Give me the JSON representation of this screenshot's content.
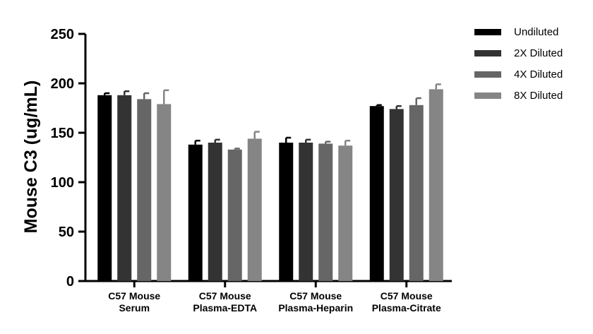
{
  "chart_data": {
    "type": "bar",
    "title": "",
    "xlabel": "",
    "ylabel": "Mouse C3 (ug/mL)",
    "ylim": [
      0,
      250
    ],
    "yticks": [
      0,
      50,
      100,
      150,
      200,
      250
    ],
    "categories": [
      [
        "C57 Mouse",
        "Serum"
      ],
      [
        "C57 Mouse",
        "Plasma-EDTA"
      ],
      [
        "C57 Mouse",
        "Plasma-Heparin"
      ],
      [
        "C57 Mouse",
        "Plasma-Citrate"
      ]
    ],
    "series": [
      {
        "name": "Undiluted",
        "color": "#000000",
        "values": [
          188,
          138,
          140,
          177
        ],
        "errors": [
          2,
          4,
          5,
          1
        ]
      },
      {
        "name": "2X Diluted",
        "color": "#333333",
        "values": [
          188,
          140,
          140,
          174
        ],
        "errors": [
          4,
          3,
          3,
          3
        ]
      },
      {
        "name": "4X Diluted",
        "color": "#666666",
        "values": [
          184,
          133,
          139,
          178
        ],
        "errors": [
          6,
          1,
          2,
          7
        ]
      },
      {
        "name": "8X Diluted",
        "color": "#858585",
        "values": [
          179,
          144,
          137,
          194
        ],
        "errors": [
          14,
          7,
          5,
          5
        ]
      }
    ],
    "legend": "top-right",
    "grid": false
  }
}
